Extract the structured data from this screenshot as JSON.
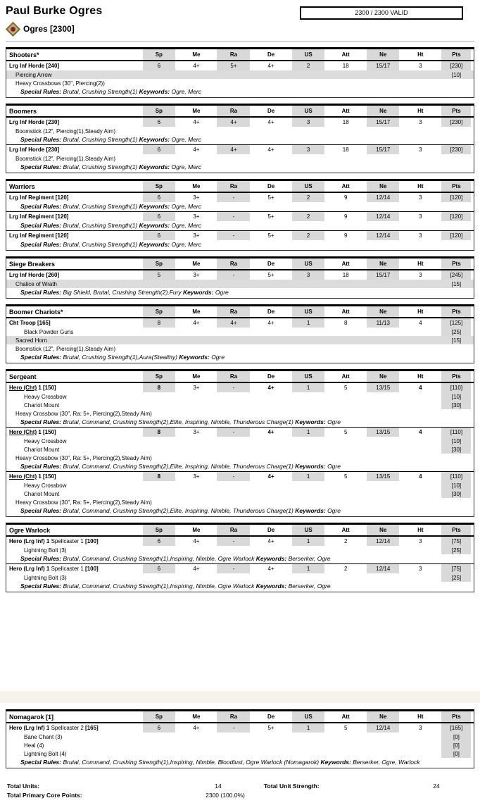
{
  "header": {
    "title": "Paul Burke Ogres",
    "validity": "2300 / 2300 VALID",
    "faction": "Ogres [2300]",
    "faction_icon": "diamond-gem-icon"
  },
  "labels": {
    "special_rules": "Special Rules:",
    "keywords": "Keywords:"
  },
  "columns": [
    "Sp",
    "Me",
    "Ra",
    "De",
    "US",
    "Att",
    "Ne",
    "Ht",
    "Pts"
  ],
  "tables": [
    {
      "name": "Shooters*",
      "page": 1,
      "units": [
        {
          "title": [
            {
              "t": "Lrg Inf Horde [240]",
              "b": 1
            }
          ],
          "stats": [
            "6",
            "4+",
            "5+",
            "4+",
            "2",
            "18",
            "15/17",
            "3",
            "[230]"
          ],
          "bold": [],
          "rows": [
            {
              "kind": "artefact",
              "label": "Piercing Arrow",
              "pts": "[10]"
            },
            {
              "kind": "weapon",
              "label": "Heavy Crossbows (30\", Piercing(2))"
            },
            {
              "kind": "rules",
              "special": "Brutal, Crushing Strength(1)",
              "keywords": "Ogre, Merc"
            }
          ]
        }
      ]
    },
    {
      "name": "Boomers",
      "page": 1,
      "units": [
        {
          "title": [
            {
              "t": "Lrg Inf Horde [230]",
              "b": 1
            }
          ],
          "stats": [
            "6",
            "4+",
            "4+",
            "4+",
            "3",
            "18",
            "15/17",
            "3",
            "[230]"
          ],
          "bold": [],
          "rows": [
            {
              "kind": "weapon",
              "label": "Boomstick (12\", Piercing(1),Steady Aim)"
            },
            {
              "kind": "rules",
              "special": "Brutal, Crushing Strength(1)",
              "keywords": "Ogre, Merc"
            }
          ]
        },
        {
          "title": [
            {
              "t": "Lrg Inf Horde [230]",
              "b": 1
            }
          ],
          "stats": [
            "6",
            "4+",
            "4+",
            "4+",
            "3",
            "18",
            "15/17",
            "3",
            "[230]"
          ],
          "bold": [],
          "rows": [
            {
              "kind": "weapon",
              "label": "Boomstick (12\", Piercing(1),Steady Aim)"
            },
            {
              "kind": "rules",
              "special": "Brutal, Crushing Strength(1)",
              "keywords": "Ogre, Merc"
            }
          ]
        }
      ]
    },
    {
      "name": "Warriors",
      "page": 1,
      "units": [
        {
          "title": [
            {
              "t": "Lrg Inf Regiment [120]",
              "b": 1
            }
          ],
          "stats": [
            "6",
            "3+",
            "-",
            "5+",
            "2",
            "9",
            "12/14",
            "3",
            "[120]"
          ],
          "bold": [],
          "rows": [
            {
              "kind": "rules",
              "special": "Brutal, Crushing Strength(1)",
              "keywords": "Ogre, Merc"
            }
          ]
        },
        {
          "title": [
            {
              "t": "Lrg Inf Regiment [120]",
              "b": 1
            }
          ],
          "stats": [
            "6",
            "3+",
            "-",
            "5+",
            "2",
            "9",
            "12/14",
            "3",
            "[120]"
          ],
          "bold": [],
          "rows": [
            {
              "kind": "rules",
              "special": "Brutal, Crushing Strength(1)",
              "keywords": "Ogre, Merc"
            }
          ]
        },
        {
          "title": [
            {
              "t": "Lrg Inf Regiment [120]",
              "b": 1
            }
          ],
          "stats": [
            "6",
            "3+",
            "-",
            "5+",
            "2",
            "9",
            "12/14",
            "3",
            "[120]"
          ],
          "bold": [],
          "rows": [
            {
              "kind": "rules",
              "special": "Brutal, Crushing Strength(1)",
              "keywords": "Ogre, Merc"
            }
          ]
        }
      ]
    },
    {
      "name": "Siege Breakers",
      "page": 1,
      "units": [
        {
          "title": [
            {
              "t": "Lrg Inf Horde [260]",
              "b": 1
            }
          ],
          "stats": [
            "5",
            "3+",
            "-",
            "5+",
            "3",
            "18",
            "15/17",
            "3",
            "[245]"
          ],
          "bold": [],
          "rows": [
            {
              "kind": "artefact",
              "label": "Chalice of Wrath",
              "pts": "[15]"
            },
            {
              "kind": "rules",
              "special": "Big Shield, Brutal, Crushing Strength(2),Fury",
              "keywords": "Ogre"
            }
          ]
        }
      ]
    },
    {
      "name": "Boomer Chariots*",
      "page": 1,
      "units": [
        {
          "title": [
            {
              "t": "Cht Troop [165]",
              "b": 1
            }
          ],
          "stats": [
            "8",
            "4+",
            "4+",
            "4+",
            "1",
            "8",
            "11/13",
            "4",
            "[125]"
          ],
          "bold": [],
          "rows": [
            {
              "kind": "upgrade",
              "label": "Black Powder Guns",
              "pts": "[25]"
            },
            {
              "kind": "artefact",
              "label": "Sacred Horn",
              "pts": "[15]"
            },
            {
              "kind": "weapon",
              "label": "Boomstick (12\", Piercing(1),Steady Aim)"
            },
            {
              "kind": "rules",
              "special": "Brutal, Crushing Strength(1),Aura(Stealthy)",
              "keywords": "Ogre"
            }
          ]
        }
      ]
    },
    {
      "name": "Sergeant",
      "page": 1,
      "units": [
        {
          "title": [
            {
              "t": "Hero (Cht)",
              "b": 1,
              "u": 1
            },
            {
              "t": " 1 [150]",
              "b": 1
            }
          ],
          "stats": [
            "8",
            "3+",
            "-",
            "4+",
            "1",
            "5",
            "13/15",
            "4",
            "[110]"
          ],
          "bold": [
            0,
            3,
            7
          ],
          "rows": [
            {
              "kind": "upgrade",
              "label": "Heavy Crossbow",
              "pts": "[10]"
            },
            {
              "kind": "upgrade",
              "label": "Chariot Mount",
              "pts": "[30]"
            },
            {
              "kind": "weapon",
              "label": "Heavy Crossbow (30\", Ra: 5+, Piercing(2),Steady Aim)"
            },
            {
              "kind": "rules",
              "special": "Brutal, Command, Crushing Strength(2),Elite, Inspiring, Nimble, Thunderous Charge(1)",
              "keywords": "Ogre"
            }
          ]
        },
        {
          "title": [
            {
              "t": "Hero (Cht)",
              "b": 1,
              "u": 1
            },
            {
              "t": " 1 [150]",
              "b": 1
            }
          ],
          "stats": [
            "8",
            "3+",
            "-",
            "4+",
            "1",
            "5",
            "13/15",
            "4",
            "[110]"
          ],
          "bold": [
            0,
            3,
            7
          ],
          "rows": [
            {
              "kind": "upgrade",
              "label": "Heavy Crossbow",
              "pts": "[10]"
            },
            {
              "kind": "upgrade",
              "label": "Chariot Mount",
              "pts": "[30]"
            },
            {
              "kind": "weapon",
              "label": "Heavy Crossbow (30\", Ra: 5+, Piercing(2),Steady Aim)"
            },
            {
              "kind": "rules",
              "special": "Brutal, Command, Crushing Strength(2),Elite, Inspiring, Nimble, Thunderous Charge(1)",
              "keywords": "Ogre"
            }
          ]
        },
        {
          "title": [
            {
              "t": "Hero (Cht)",
              "b": 1,
              "u": 1
            },
            {
              "t": " 1 [150]",
              "b": 1
            }
          ],
          "stats": [
            "8",
            "3+",
            "-",
            "4+",
            "1",
            "5",
            "13/15",
            "4",
            "[110]"
          ],
          "bold": [
            0,
            3,
            7
          ],
          "rows": [
            {
              "kind": "upgrade",
              "label": "Heavy Crossbow",
              "pts": "[10]"
            },
            {
              "kind": "upgrade",
              "label": "Chariot Mount",
              "pts": "[30]"
            },
            {
              "kind": "weapon",
              "label": "Heavy Crossbow (30\", Ra: 5+, Piercing(2),Steady Aim)"
            },
            {
              "kind": "rules",
              "special": "Brutal, Command, Crushing Strength(2),Elite, Inspiring, Nimble, Thunderous Charge(1)",
              "keywords": "Ogre"
            }
          ]
        }
      ]
    },
    {
      "name": "Ogre Warlock",
      "page": 1,
      "units": [
        {
          "title": [
            {
              "t": "Hero (Lrg Inf) 1 ",
              "b": 1
            },
            {
              "t": "Spellcaster 1 ",
              "b": 0
            },
            {
              "t": "[100]",
              "b": 1
            }
          ],
          "stats": [
            "6",
            "4+",
            "-",
            "4+",
            "1",
            "2",
            "12/14",
            "3",
            "[75]"
          ],
          "bold": [],
          "rows": [
            {
              "kind": "upgrade",
              "label": "Lightning Bolt (3)",
              "pts": "[25]"
            },
            {
              "kind": "rules",
              "special": "Brutal, Command, Crushing Strength(1),Inspiring, Nimble, Ogre Warlock",
              "keywords": "Berserker, Ogre"
            }
          ]
        },
        {
          "title": [
            {
              "t": "Hero (Lrg Inf) 1 ",
              "b": 1
            },
            {
              "t": "Spellcaster 1 ",
              "b": 0
            },
            {
              "t": "[100]",
              "b": 1
            }
          ],
          "stats": [
            "6",
            "4+",
            "-",
            "4+",
            "1",
            "2",
            "12/14",
            "3",
            "[75]"
          ],
          "bold": [],
          "rows": [
            {
              "kind": "upgrade",
              "label": "Lightning Bolt (3)",
              "pts": "[25]"
            },
            {
              "kind": "rules",
              "special": "Brutal, Command, Crushing Strength(1),Inspiring, Nimble, Ogre Warlock",
              "keywords": "Berserker, Ogre"
            }
          ]
        }
      ]
    },
    {
      "name": "Nomagarok [1]",
      "page": 2,
      "units": [
        {
          "title": [
            {
              "t": "Hero (Lrg Inf) 1 ",
              "b": 1
            },
            {
              "t": "Spellcaster 2 ",
              "b": 0
            },
            {
              "t": "[165]",
              "b": 1
            }
          ],
          "stats": [
            "6",
            "4+",
            "-",
            "5+",
            "1",
            "5",
            "12/14",
            "3",
            "[165]"
          ],
          "bold": [],
          "rows": [
            {
              "kind": "upgrade",
              "label": "Bane Chant (3)",
              "pts": "[0]"
            },
            {
              "kind": "upgrade",
              "label": "Heal (4)",
              "pts": "[0]"
            },
            {
              "kind": "upgrade",
              "label": "Lightning Bolt (4)",
              "pts": "[0]"
            },
            {
              "kind": "rules",
              "special": "Brutal, Command, Crushing Strength(1),Inspiring, Nimble, Bloodlust, Ogre Warlock (Nomagarok)",
              "keywords": "Berserker, Ogre, Warlock"
            }
          ]
        }
      ]
    }
  ],
  "totals": {
    "units_label": "Total Units:",
    "units_value": "14",
    "strength_label": "Total Unit Strength:",
    "strength_value": "24",
    "points_label": "Total Primary Core Points:",
    "points_value": "2300 (100.0%)"
  }
}
